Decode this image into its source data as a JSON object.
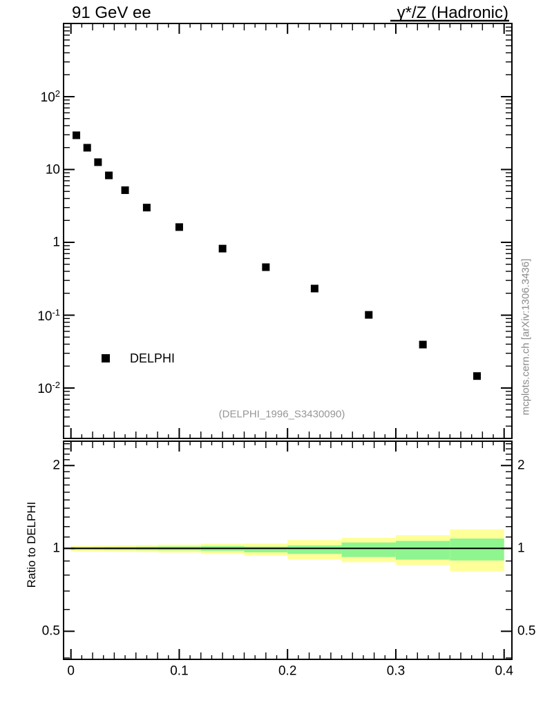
{
  "header": {
    "left_title": "91 GeV ee",
    "right_title": "γ*/Z (Hadronic)"
  },
  "legend": {
    "label": "DELPHI"
  },
  "watermark": "(DELPHI_1996_S3430090)",
  "side_note": "mcplots.cern.ch [arXiv:1306.3436]",
  "ratio_axis_label": "Ratio to DELPHI",
  "colors": {
    "marker": "#000000",
    "frame": "#000000",
    "band_outer": "#ffff99",
    "band_inner": "#8ff58f",
    "watermark_gray": "#969696",
    "sidenote_gray": "#8a8a8a"
  },
  "chart_data": {
    "type": "scatter",
    "x_axis": {
      "range_frame": [
        -0.0068,
        0.4068
      ],
      "major_ticks": [
        0,
        0.1,
        0.2,
        0.3,
        0.4
      ],
      "major_tick_labels": [
        "0",
        "0.1",
        "0.2",
        "0.3",
        "0.4"
      ],
      "minor_step": 0.01,
      "medium_step": 0.02
    },
    "main_panel": {
      "yscale": "log",
      "y_range_frame": [
        0.00203,
        1011
      ],
      "y_tick_labels": [
        {
          "v": 100,
          "base": "10",
          "exp": "2"
        },
        {
          "v": 10,
          "base": "10",
          "exp": ""
        },
        {
          "v": 1,
          "base": "1",
          "exp": ""
        },
        {
          "v": 0.1,
          "base": "10",
          "exp": "-1"
        },
        {
          "v": 0.01,
          "base": "10",
          "exp": "-2"
        }
      ],
      "series": [
        {
          "name": "DELPHI",
          "marker": "filled-square",
          "color": "#000000",
          "x": [
            0.005,
            0.015,
            0.025,
            0.035,
            0.05,
            0.07,
            0.1,
            0.14,
            0.18,
            0.225,
            0.275,
            0.325,
            0.375
          ],
          "y": [
            29.5,
            19.9,
            12.6,
            8.3,
            5.2,
            3.0,
            1.62,
            0.82,
            0.456,
            0.232,
            0.101,
            0.0395,
            0.0146
          ]
        }
      ]
    },
    "ratio_panel": {
      "yscale": "log",
      "y_range_frame": [
        0.3953,
        2.466
      ],
      "y_tick_labels": [
        {
          "v": 2,
          "label": "2"
        },
        {
          "v": 1,
          "label": "1"
        },
        {
          "v": 0.5,
          "label": "0.5"
        }
      ],
      "minor_ticks": [
        0.4,
        0.6,
        0.7,
        0.8,
        0.9,
        1.1,
        1.2,
        1.3,
        1.4,
        1.5,
        1.6,
        1.7,
        1.8,
        1.9,
        2.1,
        2.2,
        2.3,
        2.4
      ],
      "reference_line": 1,
      "bin_edges": [
        0,
        0.01,
        0.02,
        0.03,
        0.04,
        0.06,
        0.08,
        0.12,
        0.16,
        0.2,
        0.25,
        0.3,
        0.35,
        0.4
      ],
      "band_inner": [
        [
          0.99,
          1.01
        ],
        [
          0.99,
          1.01
        ],
        [
          0.989,
          1.011
        ],
        [
          0.988,
          1.012
        ],
        [
          0.988,
          1.012
        ],
        [
          0.986,
          1.014
        ],
        [
          0.984,
          1.016
        ],
        [
          0.98,
          1.02
        ],
        [
          0.968,
          1.015
        ],
        [
          0.955,
          1.025
        ],
        [
          0.931,
          1.051
        ],
        [
          0.91,
          1.065
        ],
        [
          0.904,
          1.086
        ]
      ],
      "band_outer": [
        [
          0.975,
          1.022
        ],
        [
          0.975,
          1.022
        ],
        [
          0.974,
          1.023
        ],
        [
          0.973,
          1.024
        ],
        [
          0.972,
          1.025
        ],
        [
          0.97,
          1.028
        ],
        [
          0.966,
          1.032
        ],
        [
          0.955,
          1.04
        ],
        [
          0.94,
          1.042
        ],
        [
          0.913,
          1.072
        ],
        [
          0.891,
          1.092
        ],
        [
          0.87,
          1.118
        ],
        [
          0.827,
          1.173
        ]
      ]
    }
  }
}
